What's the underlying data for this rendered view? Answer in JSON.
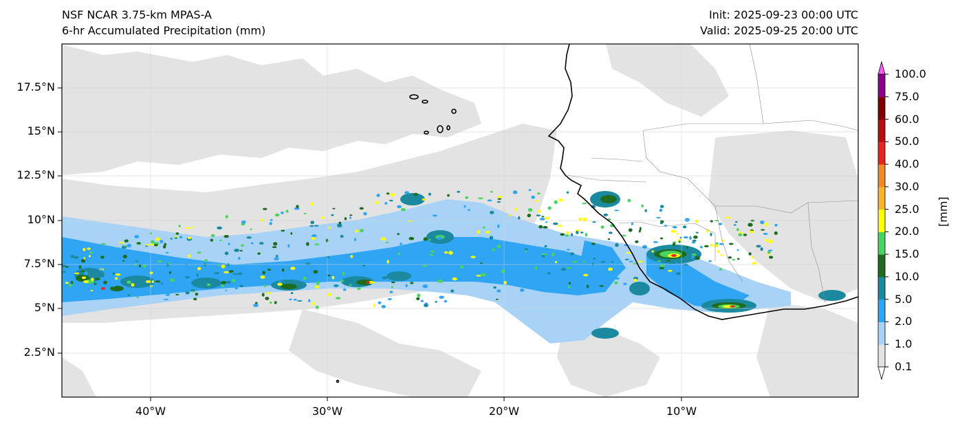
{
  "header": {
    "title_line1": "NSF NCAR 3.75-km MPAS-A",
    "title_line2": "6-hr Accumulated Precipitation (mm)",
    "init": "Init: 2025-09-23 00:00 UTC",
    "valid": "Valid: 2025-09-25 20:00 UTC"
  },
  "map": {
    "lat_labels": [
      "17.5°N",
      "15°N",
      "12.5°N",
      "10°N",
      "7.5°N",
      "5°N",
      "2.5°N"
    ],
    "lon_labels": [
      "40°W",
      "30°W",
      "20°W",
      "10°W"
    ],
    "lat_values": [
      17.5,
      15,
      12.5,
      10,
      7.5,
      5,
      2.5
    ],
    "lon_values": [
      -40,
      -30,
      -20,
      -10
    ],
    "extent": {
      "lon_min": -45,
      "lon_max": 0,
      "lat_min": 0,
      "lat_max": 20
    },
    "gridlines": true,
    "background_color": "#ffffff",
    "light_precip_color": "#e3e3e3"
  },
  "colorbar": {
    "unit_label": "[mm]",
    "levels": [
      "0.1",
      "1.0",
      "2.0",
      "5.0",
      "10.0",
      "15.0",
      "20.0",
      "25.0",
      "30.0",
      "40.0",
      "50.0",
      "60.0",
      "75.0",
      "100.0"
    ],
    "colors": [
      "#e3e3e3",
      "#a8d3f7",
      "#2fa5f4",
      "#1b8aa0",
      "#1f6b1f",
      "#4bd35f",
      "#ffff0b",
      "#f6b42f",
      "#ee8a2a",
      "#e3281f",
      "#b60f0f",
      "#7e0000",
      "#8b008b",
      "#fa61fa"
    ]
  }
}
